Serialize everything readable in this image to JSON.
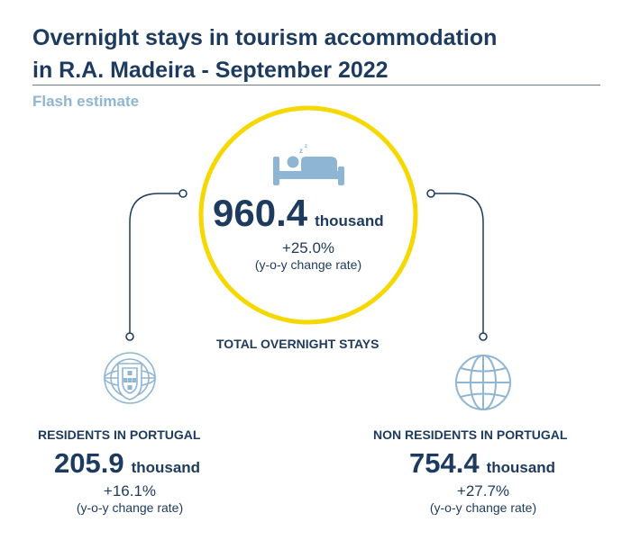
{
  "title_line1": "Overnight stays in tourism accommodation",
  "title_line2": "in R.A. Madeira - September 2022",
  "subtitle": "Flash estimate",
  "total": {
    "value": "960.4",
    "unit": "thousand",
    "change": "+25.0%",
    "change_label": "(y-o-y change rate)",
    "label": "TOTAL OVERNIGHT STAYS",
    "icon": "bed-sleeping-icon"
  },
  "residents": {
    "label": "RESIDENTS IN PORTUGAL",
    "value": "205.9",
    "unit": "thousand",
    "change": "+16.1%",
    "change_label": "(y-o-y change rate)",
    "icon": "portugal-coat-of-arms-icon"
  },
  "non_residents": {
    "label": "NON RESIDENTS IN PORTUGAL",
    "value": "754.4",
    "unit": "thousand",
    "change": "+27.7%",
    "change_label": "(y-o-y change rate)",
    "icon": "globe-icon"
  },
  "colors": {
    "navy": "#1d3a5f",
    "light_blue": "#8fb5d4",
    "yellow": "#f5d800"
  }
}
